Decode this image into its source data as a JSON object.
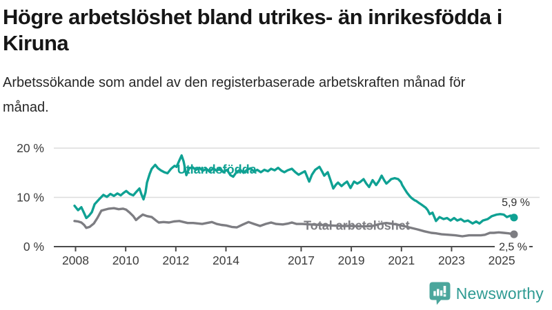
{
  "header": {
    "title": "Högre arbetslöshet bland utrikes- än inrikesfödda i Kiruna",
    "subtitle": "Arbetssökande som andel av den registerbaserade arbetskraften månad för månad."
  },
  "chart_data": {
    "type": "line",
    "x_unit": "decimal_year",
    "xlim": [
      2007.9,
      2026.3
    ],
    "ylim": [
      0,
      20
    ],
    "grid": "horizontal",
    "y_ticks": [
      {
        "value": 0,
        "label": "0 %"
      },
      {
        "value": 10,
        "label": "10 %"
      },
      {
        "value": 20,
        "label": "20 %"
      }
    ],
    "x_ticks": [
      {
        "value": 2008,
        "label": "2008"
      },
      {
        "value": 2010,
        "label": "2010"
      },
      {
        "value": 2012,
        "label": "2012"
      },
      {
        "value": 2014,
        "label": "2014"
      },
      {
        "value": 2017,
        "label": "2017"
      },
      {
        "value": 2019,
        "label": "2019"
      },
      {
        "value": 2021,
        "label": "2021"
      },
      {
        "value": 2023,
        "label": "2023"
      },
      {
        "value": 2025,
        "label": "2025"
      }
    ],
    "colors": {
      "utlandsfodda": "#0fa193",
      "total": "#7d7d82",
      "gridline": "#dcdcdc",
      "axis": "#4a4a4a"
    },
    "series": [
      {
        "name": "Utlandsfödda",
        "color": "#0fa193",
        "end_label": "5,9 %",
        "end_value": 5.9,
        "name_label_pos": {
          "x": 2012.05,
          "y": 14.8
        },
        "points": [
          [
            2007.96,
            8.3
          ],
          [
            2008.1,
            7.4
          ],
          [
            2008.23,
            8.0
          ],
          [
            2008.34,
            6.8
          ],
          [
            2008.43,
            5.8
          ],
          [
            2008.54,
            6.3
          ],
          [
            2008.65,
            7.0
          ],
          [
            2008.76,
            8.6
          ],
          [
            2008.92,
            9.5
          ],
          [
            2009.11,
            10.5
          ],
          [
            2009.25,
            10.1
          ],
          [
            2009.39,
            10.7
          ],
          [
            2009.53,
            10.3
          ],
          [
            2009.67,
            10.8
          ],
          [
            2009.8,
            10.4
          ],
          [
            2009.91,
            10.9
          ],
          [
            2010.02,
            11.3
          ],
          [
            2010.16,
            10.7
          ],
          [
            2010.3,
            10.4
          ],
          [
            2010.44,
            11.2
          ],
          [
            2010.55,
            11.8
          ],
          [
            2010.63,
            10.6
          ],
          [
            2010.71,
            9.6
          ],
          [
            2010.79,
            11.0
          ],
          [
            2010.85,
            13.0
          ],
          [
            2010.96,
            14.8
          ],
          [
            2011.04,
            15.8
          ],
          [
            2011.18,
            16.6
          ],
          [
            2011.29,
            15.9
          ],
          [
            2011.4,
            15.5
          ],
          [
            2011.54,
            15.1
          ],
          [
            2011.67,
            14.9
          ],
          [
            2011.81,
            15.8
          ],
          [
            2011.95,
            16.4
          ],
          [
            2012.03,
            16.2
          ],
          [
            2012.14,
            17.5
          ],
          [
            2012.23,
            18.5
          ],
          [
            2012.31,
            17.3
          ],
          [
            2012.42,
            14.5
          ],
          [
            2012.53,
            15.9
          ],
          [
            2012.67,
            16.1
          ],
          [
            2012.8,
            15.6
          ],
          [
            2012.94,
            16.0
          ],
          [
            2013.08,
            15.4
          ],
          [
            2013.22,
            15.8
          ],
          [
            2013.35,
            15.2
          ],
          [
            2013.49,
            15.9
          ],
          [
            2013.63,
            15.4
          ],
          [
            2013.77,
            15.9
          ],
          [
            2013.9,
            15.1
          ],
          [
            2014.04,
            15.6
          ],
          [
            2014.18,
            14.5
          ],
          [
            2014.29,
            14.2
          ],
          [
            2014.43,
            15.2
          ],
          [
            2014.57,
            15.6
          ],
          [
            2014.7,
            15.0
          ],
          [
            2014.84,
            15.6
          ],
          [
            2014.98,
            15.9
          ],
          [
            2015.12,
            15.2
          ],
          [
            2015.25,
            15.6
          ],
          [
            2015.39,
            15.1
          ],
          [
            2015.53,
            15.6
          ],
          [
            2015.67,
            15.3
          ],
          [
            2015.8,
            15.8
          ],
          [
            2015.94,
            15.5
          ],
          [
            2016.08,
            16.0
          ],
          [
            2016.22,
            15.4
          ],
          [
            2016.33,
            15.1
          ],
          [
            2016.46,
            15.5
          ],
          [
            2016.63,
            15.8
          ],
          [
            2016.77,
            15.1
          ],
          [
            2016.9,
            14.6
          ],
          [
            2017.04,
            15.0
          ],
          [
            2017.15,
            15.3
          ],
          [
            2017.32,
            13.2
          ],
          [
            2017.43,
            14.6
          ],
          [
            2017.56,
            15.6
          ],
          [
            2017.73,
            16.2
          ],
          [
            2017.84,
            15.2
          ],
          [
            2017.92,
            14.4
          ],
          [
            2018.06,
            15.1
          ],
          [
            2018.17,
            13.5
          ],
          [
            2018.28,
            11.8
          ],
          [
            2018.39,
            12.6
          ],
          [
            2018.47,
            13.0
          ],
          [
            2018.61,
            12.3
          ],
          [
            2018.72,
            12.8
          ],
          [
            2018.83,
            13.2
          ],
          [
            2018.97,
            11.9
          ],
          [
            2019.11,
            13.2
          ],
          [
            2019.24,
            12.8
          ],
          [
            2019.35,
            13.1
          ],
          [
            2019.49,
            13.7
          ],
          [
            2019.6,
            12.8
          ],
          [
            2019.71,
            12.1
          ],
          [
            2019.85,
            13.5
          ],
          [
            2019.99,
            12.5
          ],
          [
            2020.1,
            13.3
          ],
          [
            2020.21,
            14.4
          ],
          [
            2020.32,
            13.4
          ],
          [
            2020.4,
            12.8
          ],
          [
            2020.51,
            13.3
          ],
          [
            2020.59,
            13.7
          ],
          [
            2020.73,
            13.9
          ],
          [
            2020.87,
            13.7
          ],
          [
            2020.98,
            13.1
          ],
          [
            2021.03,
            12.5
          ],
          [
            2021.14,
            11.6
          ],
          [
            2021.23,
            10.9
          ],
          [
            2021.34,
            10.2
          ],
          [
            2021.42,
            9.8
          ],
          [
            2021.53,
            9.4
          ],
          [
            2021.58,
            9.3
          ],
          [
            2021.69,
            8.9
          ],
          [
            2021.78,
            8.6
          ],
          [
            2021.89,
            8.2
          ],
          [
            2021.97,
            7.9
          ],
          [
            2022.05,
            7.4
          ],
          [
            2022.13,
            6.6
          ],
          [
            2022.24,
            6.9
          ],
          [
            2022.38,
            5.2
          ],
          [
            2022.52,
            6.0
          ],
          [
            2022.68,
            5.6
          ],
          [
            2022.82,
            5.8
          ],
          [
            2022.96,
            5.3
          ],
          [
            2023.1,
            5.8
          ],
          [
            2023.23,
            5.3
          ],
          [
            2023.37,
            5.6
          ],
          [
            2023.51,
            5.1
          ],
          [
            2023.65,
            5.3
          ],
          [
            2023.84,
            4.7
          ],
          [
            2023.98,
            5.1
          ],
          [
            2024.11,
            4.7
          ],
          [
            2024.25,
            5.3
          ],
          [
            2024.44,
            5.6
          ],
          [
            2024.61,
            6.2
          ],
          [
            2024.8,
            6.5
          ],
          [
            2024.94,
            6.6
          ],
          [
            2025.08,
            6.5
          ],
          [
            2025.21,
            6.0
          ],
          [
            2025.35,
            6.3
          ],
          [
            2025.49,
            5.9
          ]
        ]
      },
      {
        "name": "Total arbetslöshet",
        "color": "#7d7d82",
        "end_label": "2,5 %",
        "end_value": 2.5,
        "name_label_pos": {
          "x": 2017.1,
          "y": 3.4
        },
        "points": [
          [
            2007.96,
            5.2
          ],
          [
            2008.1,
            5.1
          ],
          [
            2008.23,
            4.9
          ],
          [
            2008.34,
            4.4
          ],
          [
            2008.43,
            3.8
          ],
          [
            2008.56,
            4.0
          ],
          [
            2008.73,
            4.7
          ],
          [
            2008.87,
            5.8
          ],
          [
            2009.03,
            7.3
          ],
          [
            2009.17,
            7.5
          ],
          [
            2009.33,
            7.7
          ],
          [
            2009.53,
            7.8
          ],
          [
            2009.72,
            7.6
          ],
          [
            2009.89,
            7.7
          ],
          [
            2010.02,
            7.5
          ],
          [
            2010.16,
            6.9
          ],
          [
            2010.3,
            6.2
          ],
          [
            2010.41,
            5.4
          ],
          [
            2010.55,
            6.0
          ],
          [
            2010.68,
            6.5
          ],
          [
            2010.85,
            6.2
          ],
          [
            2011.04,
            6.0
          ],
          [
            2011.21,
            5.3
          ],
          [
            2011.32,
            4.9
          ],
          [
            2011.51,
            5.0
          ],
          [
            2011.73,
            4.9
          ],
          [
            2011.92,
            5.1
          ],
          [
            2012.14,
            5.2
          ],
          [
            2012.31,
            5.0
          ],
          [
            2012.47,
            4.8
          ],
          [
            2012.69,
            4.8
          ],
          [
            2012.89,
            4.7
          ],
          [
            2013.05,
            4.6
          ],
          [
            2013.24,
            4.8
          ],
          [
            2013.44,
            5.0
          ],
          [
            2013.63,
            4.6
          ],
          [
            2013.82,
            4.4
          ],
          [
            2014.01,
            4.3
          ],
          [
            2014.23,
            4.0
          ],
          [
            2014.43,
            3.9
          ],
          [
            2014.68,
            4.5
          ],
          [
            2014.9,
            5.0
          ],
          [
            2015.12,
            4.6
          ],
          [
            2015.36,
            4.2
          ],
          [
            2015.58,
            4.6
          ],
          [
            2015.8,
            4.9
          ],
          [
            2016.0,
            4.6
          ],
          [
            2016.27,
            4.5
          ],
          [
            2016.49,
            4.7
          ],
          [
            2016.63,
            4.9
          ],
          [
            2016.82,
            4.6
          ],
          [
            2017.04,
            4.6
          ],
          [
            2017.37,
            4.5
          ],
          [
            2017.79,
            4.4
          ],
          [
            2018.2,
            4.3
          ],
          [
            2018.61,
            4.2
          ],
          [
            2019.02,
            4.2
          ],
          [
            2019.44,
            4.1
          ],
          [
            2019.85,
            4.2
          ],
          [
            2020.13,
            4.6
          ],
          [
            2020.4,
            4.8
          ],
          [
            2020.81,
            4.5
          ],
          [
            2021.23,
            4.0
          ],
          [
            2021.64,
            3.5
          ],
          [
            2021.92,
            3.1
          ],
          [
            2022.19,
            2.8
          ],
          [
            2022.38,
            2.7
          ],
          [
            2022.6,
            2.5
          ],
          [
            2022.88,
            2.4
          ],
          [
            2023.15,
            2.3
          ],
          [
            2023.43,
            2.1
          ],
          [
            2023.7,
            2.3
          ],
          [
            2023.98,
            2.3
          ],
          [
            2024.17,
            2.3
          ],
          [
            2024.33,
            2.4
          ],
          [
            2024.53,
            2.8
          ],
          [
            2024.69,
            2.8
          ],
          [
            2024.88,
            2.9
          ],
          [
            2025.08,
            2.8
          ],
          [
            2025.27,
            2.7
          ],
          [
            2025.49,
            2.5
          ]
        ]
      }
    ]
  },
  "footer": {
    "brand": "Newsworthy",
    "logo_icon": "bar-chart-pin-icon",
    "logo_color": "#4ba69c",
    "brand_color": "#2f9b93"
  }
}
